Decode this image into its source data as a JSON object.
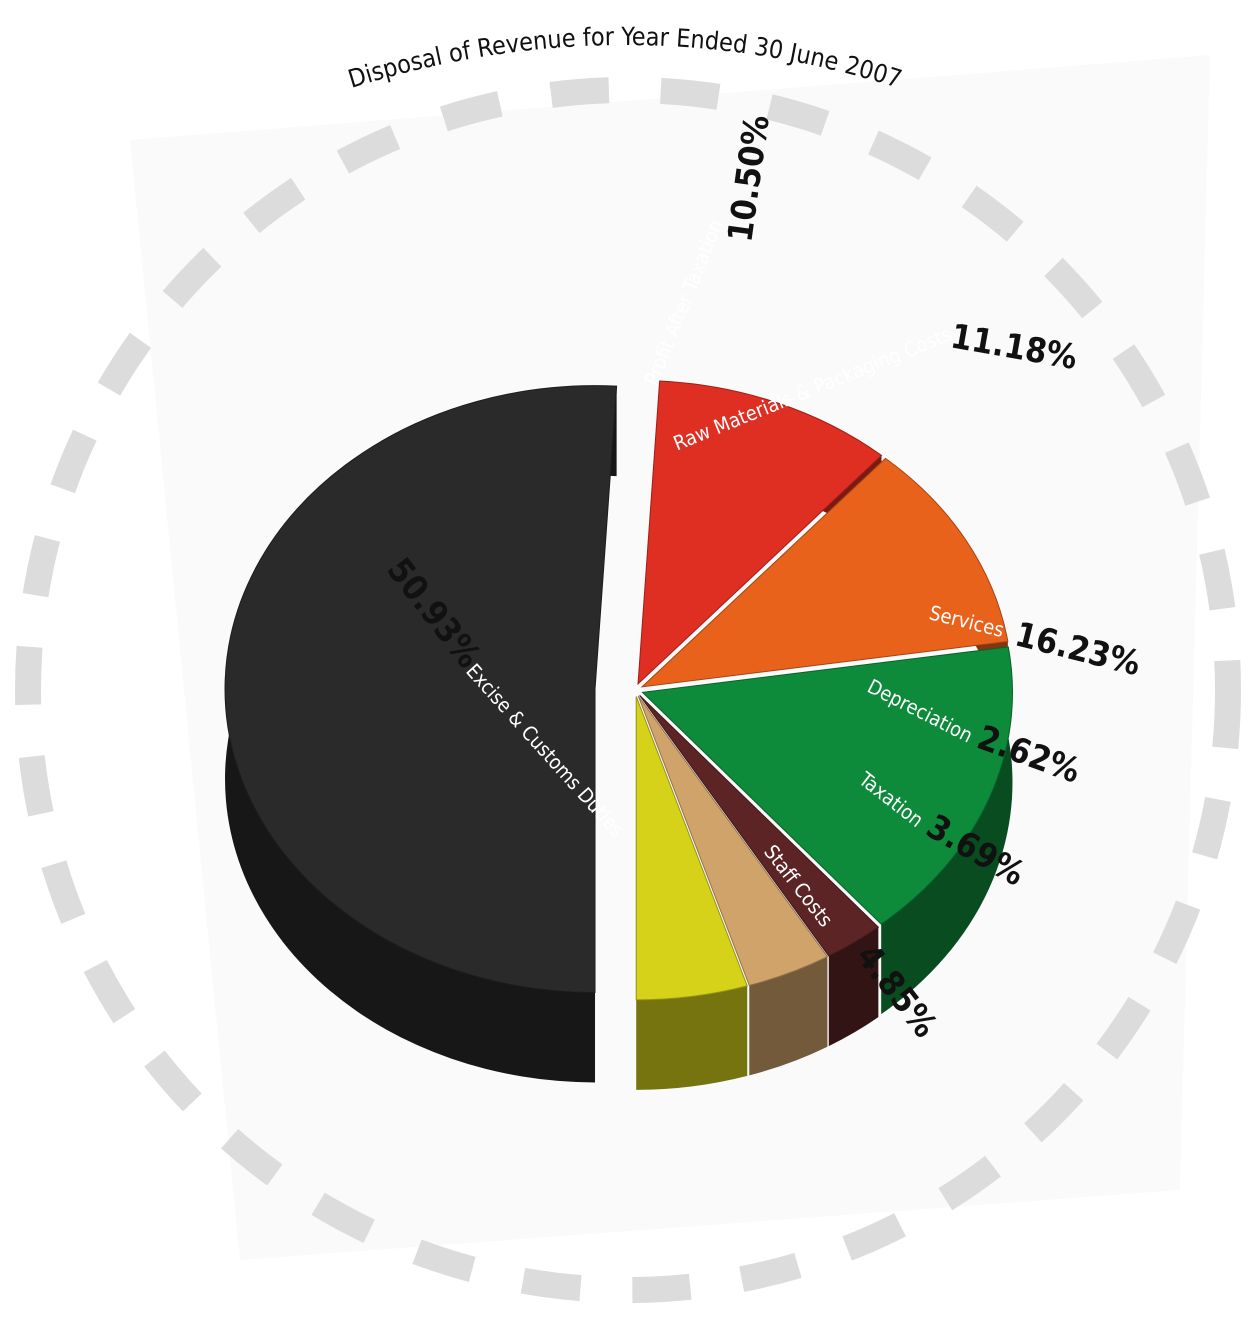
{
  "chart_data": {
    "type": "pie",
    "title": "Disposal of Revenue for Year Ended 30 June 2007",
    "style": "3d-exploded",
    "slices": [
      {
        "label": "Excise & Customs Duties",
        "value": 50.93,
        "value_label": "50.93%",
        "color": "#2a2a2a"
      },
      {
        "label": "Profit After Taxation",
        "value": 10.5,
        "value_label": "10.50%",
        "color": "#df2e22"
      },
      {
        "label": "Raw Materials & Packaging Costs",
        "value": 11.18,
        "value_label": "11.18%",
        "color": "#e8621c"
      },
      {
        "label": "Services",
        "value": 16.23,
        "value_label": "16.23%",
        "color": "#0e8a3b"
      },
      {
        "label": "Depreciation",
        "value": 2.62,
        "value_label": "2.62%",
        "color": "#5c2424"
      },
      {
        "label": "Taxation",
        "value": 3.69,
        "value_label": "3.69%",
        "color": "#cfa36a"
      },
      {
        "label": "Staff Costs",
        "value": 4.85,
        "value_label": "4.85%",
        "color": "#d6d21a"
      }
    ]
  },
  "colors": {
    "dashed_ring": "#dcdcdc",
    "panel": "#fafafa"
  }
}
